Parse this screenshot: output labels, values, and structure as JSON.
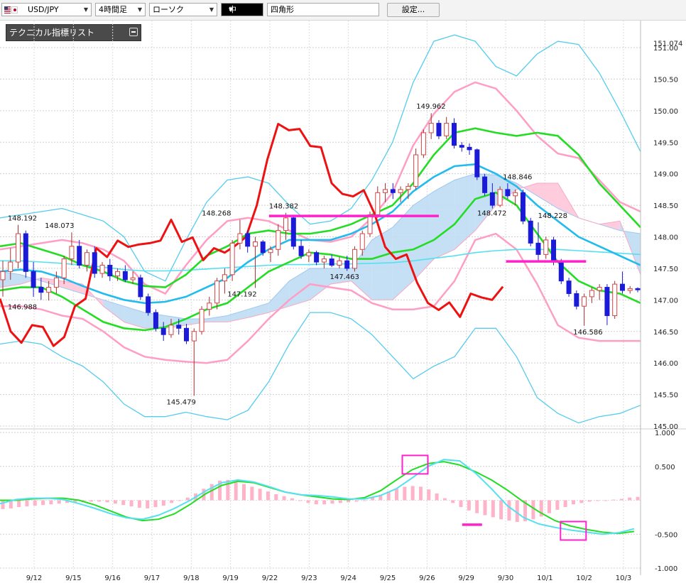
{
  "toolbar": {
    "symbol": "USD/JPY",
    "timeframe": "4時間足",
    "chart_style": "ローソク",
    "line_width": "中",
    "shape": "四角形",
    "settings_label": "設定..."
  },
  "indicator_panel": {
    "title": "テクニカル指標リスト"
  },
  "colors": {
    "bull": "#d44545",
    "bear": "#1a1ad8",
    "red_line": "#ee1111",
    "bb_inner": "#ff9ec4",
    "bb_outer": "#55ccee",
    "ma_green": "#22dd22",
    "ma_blue": "#22bbee",
    "ma_cyan": "#55e0f0",
    "cloud_blue": "#bfdcf4",
    "cloud_pink": "#ffc6da",
    "magenta": "#ff22cc",
    "hist": "#ffb3c8"
  },
  "chart_data": {
    "type": "line",
    "price_axis": {
      "ticks": [
        "151.00",
        "150.50",
        "150.00",
        "149.50",
        "149.00",
        "148.50",
        "148.00",
        "147.50",
        "147.00",
        "146.50",
        "146.00",
        "145.50",
        "145.00"
      ],
      "top_label": "151.074"
    },
    "macd_axis": {
      "ticks": [
        "1.000",
        "0.500",
        "-0.500",
        "-1.000"
      ]
    },
    "x_labels": [
      "9/12",
      "9/15",
      "9/16",
      "9/17",
      "9/18",
      "9/19",
      "9/22",
      "9/23",
      "9/24",
      "9/25",
      "9/26",
      "9/29",
      "9/30",
      "10/1",
      "10/2",
      "10/3"
    ],
    "price_labels": [
      "148.192",
      "148.073",
      "146.988",
      "145.479",
      "148.268",
      "147.192",
      "148.382",
      "147.463",
      "149.962",
      "148.846",
      "148.472",
      "148.228",
      "146.586"
    ],
    "candles": [
      [
        147.32,
        147.62,
        147.05,
        147.45
      ],
      [
        147.45,
        147.82,
        147.32,
        147.6
      ],
      [
        147.6,
        148.19,
        147.5,
        148.05
      ],
      [
        148.05,
        148.1,
        147.35,
        147.45
      ],
      [
        147.45,
        147.6,
        147.05,
        147.2
      ],
      [
        147.2,
        147.35,
        147.0,
        147.12
      ],
      [
        147.12,
        147.3,
        146.99,
        147.2
      ],
      [
        147.2,
        147.45,
        147.1,
        147.35
      ],
      [
        147.35,
        147.7,
        147.25,
        147.65
      ],
      [
        147.65,
        148.07,
        147.55,
        147.85
      ],
      [
        147.85,
        147.95,
        147.5,
        147.55
      ],
      [
        147.55,
        147.8,
        147.45,
        147.75
      ],
      [
        147.75,
        147.85,
        147.35,
        147.42
      ],
      [
        147.42,
        147.6,
        147.35,
        147.55
      ],
      [
        147.55,
        147.65,
        147.3,
        147.38
      ],
      [
        147.38,
        147.5,
        147.3,
        147.45
      ],
      [
        147.45,
        147.55,
        147.28,
        147.32
      ],
      [
        147.32,
        147.45,
        147.25,
        147.35
      ],
      [
        147.35,
        147.4,
        147.0,
        147.05
      ],
      [
        147.05,
        147.1,
        146.75,
        146.8
      ],
      [
        146.8,
        146.85,
        146.5,
        146.55
      ],
      [
        146.55,
        146.65,
        146.35,
        146.45
      ],
      [
        146.45,
        146.7,
        146.4,
        146.6
      ],
      [
        146.6,
        146.7,
        146.45,
        146.55
      ],
      [
        146.55,
        146.62,
        146.3,
        146.35
      ],
      [
        146.35,
        146.55,
        145.48,
        146.5
      ],
      [
        146.5,
        146.9,
        146.45,
        146.85
      ],
      [
        146.85,
        147.05,
        146.75,
        146.95
      ],
      [
        146.95,
        147.35,
        146.85,
        147.3
      ],
      [
        147.3,
        147.5,
        147.1,
        147.4
      ],
      [
        147.4,
        147.95,
        147.3,
        147.9
      ],
      [
        147.9,
        148.27,
        147.8,
        148.05
      ],
      [
        148.05,
        148.1,
        147.75,
        147.85
      ],
      [
        147.85,
        148.0,
        147.19,
        147.92
      ],
      [
        147.92,
        147.95,
        147.7,
        147.75
      ],
      [
        147.75,
        147.85,
        147.6,
        147.8
      ],
      [
        147.8,
        148.2,
        147.7,
        148.1
      ],
      [
        148.1,
        148.38,
        147.95,
        148.3
      ],
      [
        148.3,
        148.35,
        147.8,
        147.85
      ],
      [
        147.85,
        147.95,
        147.65,
        147.7
      ],
      [
        147.7,
        147.8,
        147.6,
        147.75
      ],
      [
        147.75,
        147.78,
        147.55,
        147.6
      ],
      [
        147.6,
        147.7,
        147.5,
        147.65
      ],
      [
        147.65,
        147.72,
        147.52,
        147.55
      ],
      [
        147.55,
        147.68,
        147.5,
        147.62
      ],
      [
        147.62,
        147.7,
        147.46,
        147.5
      ],
      [
        147.5,
        147.85,
        147.45,
        147.8
      ],
      [
        147.8,
        148.1,
        147.7,
        148.05
      ],
      [
        148.05,
        148.4,
        148.0,
        148.35
      ],
      [
        148.35,
        148.8,
        148.3,
        148.7
      ],
      [
        148.7,
        148.85,
        148.55,
        148.75
      ],
      [
        148.75,
        148.85,
        148.6,
        148.7
      ],
      [
        148.7,
        148.8,
        148.55,
        148.75
      ],
      [
        148.75,
        148.85,
        148.6,
        148.8
      ],
      [
        148.8,
        149.4,
        148.75,
        149.3
      ],
      [
        149.3,
        149.7,
        149.25,
        149.65
      ],
      [
        149.65,
        149.96,
        149.55,
        149.8
      ],
      [
        149.8,
        149.85,
        149.55,
        149.6
      ],
      [
        149.6,
        149.9,
        149.55,
        149.8
      ],
      [
        149.8,
        149.88,
        149.4,
        149.45
      ],
      [
        149.45,
        149.5,
        149.35,
        149.42
      ],
      [
        149.42,
        149.48,
        149.3,
        149.38
      ],
      [
        149.38,
        149.4,
        148.9,
        148.95
      ],
      [
        148.95,
        149.0,
        148.65,
        148.7
      ],
      [
        148.7,
        148.85,
        148.45,
        148.5
      ],
      [
        148.5,
        148.8,
        148.47,
        148.75
      ],
      [
        148.75,
        148.85,
        148.6,
        148.65
      ],
      [
        148.65,
        148.75,
        148.5,
        148.7
      ],
      [
        148.7,
        148.75,
        148.2,
        148.25
      ],
      [
        148.25,
        148.3,
        147.85,
        147.9
      ],
      [
        147.9,
        148.23,
        147.6,
        147.72
      ],
      [
        147.72,
        148.0,
        147.65,
        147.95
      ],
      [
        147.95,
        148.0,
        147.55,
        147.6
      ],
      [
        147.6,
        147.65,
        147.25,
        147.3
      ],
      [
        147.3,
        147.35,
        147.05,
        147.1
      ],
      [
        147.1,
        147.15,
        146.85,
        146.9
      ],
      [
        146.9,
        147.1,
        146.59,
        147.05
      ],
      [
        147.05,
        147.2,
        146.95,
        147.15
      ],
      [
        147.15,
        147.25,
        147.0,
        147.2
      ],
      [
        147.2,
        147.25,
        146.6,
        146.75
      ],
      [
        146.75,
        147.3,
        146.7,
        147.25
      ],
      [
        147.25,
        147.45,
        147.1,
        147.15
      ],
      [
        147.15,
        147.22,
        147.1,
        147.18
      ],
      [
        147.18,
        147.2,
        147.12,
        147.16
      ]
    ],
    "series": [
      {
        "values": [
          147.02,
          146.5,
          146.32,
          146.6,
          146.57,
          146.27,
          146.41,
          146.9,
          147.02,
          147.82,
          147.68,
          147.94,
          147.84,
          147.88,
          147.9,
          147.94,
          148.27,
          147.92,
          147.99,
          147.63,
          147.82,
          147.75,
          147.86,
          148.0,
          148.5,
          149.23,
          149.79,
          149.69,
          149.71,
          149.44,
          149.42,
          148.85,
          148.68,
          148.64,
          148.74,
          148.37,
          147.84,
          147.65,
          147.72,
          147.27,
          146.95,
          146.84,
          146.96,
          146.73,
          147.1,
          147.04,
          147.0,
          147.21
        ]
      }
    ],
    "bollinger": {
      "inner_upper": [
        147.8,
        147.85,
        147.9,
        147.95,
        147.9,
        147.8,
        147.62,
        147.25,
        147.1,
        147.55,
        147.95,
        148.25,
        148.3,
        148.25,
        148.1,
        147.95,
        147.92,
        148.0,
        148.3,
        148.7,
        149.45,
        149.95,
        150.3,
        150.45,
        150.35,
        150.0,
        149.6,
        149.32,
        149.25,
        148.9,
        148.55,
        148.4
      ],
      "inner_lower": [
        146.9,
        146.9,
        146.85,
        146.75,
        146.7,
        146.5,
        146.25,
        146.1,
        146.05,
        146.02,
        146.0,
        146.05,
        146.35,
        146.7,
        147.0,
        147.25,
        147.2,
        147.15,
        146.95,
        146.85,
        146.85,
        146.9,
        147.3,
        147.95,
        148.05,
        147.8,
        147.25,
        146.6,
        146.4,
        146.35,
        146.35,
        146.35
      ],
      "outer_upper": [
        148.3,
        148.35,
        148.4,
        148.45,
        148.35,
        148.25,
        148.0,
        147.45,
        147.3,
        147.95,
        148.55,
        148.9,
        148.95,
        148.85,
        148.5,
        148.2,
        148.25,
        148.45,
        148.9,
        149.5,
        150.45,
        151.1,
        151.2,
        151.1,
        150.7,
        150.55,
        150.9,
        151.1,
        151.05,
        150.6,
        150.0,
        149.35
      ],
      "outer_lower": [
        146.3,
        146.35,
        146.3,
        146.1,
        145.95,
        145.7,
        145.35,
        145.15,
        145.15,
        145.22,
        145.15,
        145.1,
        145.25,
        145.7,
        146.3,
        146.8,
        146.8,
        146.7,
        146.45,
        146.1,
        145.75,
        145.95,
        146.1,
        146.55,
        146.55,
        146.1,
        145.45,
        145.2,
        145.05,
        145.15,
        145.2,
        145.33
      ]
    },
    "green_upper": [
      147.85,
      147.9,
      147.8,
      147.7,
      147.55,
      147.45,
      147.3,
      147.22,
      147.2,
      147.4,
      147.7,
      147.85,
      148.05,
      148.1,
      148.05,
      148.05,
      148.1,
      148.2,
      148.35,
      148.5,
      148.85,
      149.3,
      149.65,
      149.72,
      149.65,
      149.6,
      149.65,
      149.6,
      149.3,
      148.85,
      148.5,
      148.15
    ],
    "green_lower": [
      147.15,
      147.2,
      147.2,
      147.05,
      146.85,
      146.65,
      146.55,
      146.52,
      146.57,
      146.7,
      146.85,
      146.95,
      147.2,
      147.45,
      147.6,
      147.75,
      147.72,
      147.65,
      147.65,
      147.75,
      147.8,
      147.95,
      148.2,
      148.6,
      148.7,
      148.5,
      148.05,
      147.6,
      147.3,
      147.15,
      147.1,
      146.95
    ],
    "ma_blue": [
      147.45,
      147.48,
      147.45,
      147.35,
      147.22,
      147.1,
      147.0,
      146.95,
      146.97,
      147.05,
      147.2,
      147.35,
      147.6,
      147.8,
      147.95,
      147.95,
      147.95,
      148.05,
      148.2,
      148.4,
      148.72,
      148.95,
      149.12,
      149.15,
      149.0,
      148.8,
      148.5,
      148.25,
      148.0,
      147.85,
      147.7,
      147.55
    ],
    "ma_cyan": [
      147.62,
      147.62,
      147.6,
      147.58,
      147.55,
      147.52,
      147.48,
      147.46,
      147.46,
      147.47,
      147.49,
      147.51,
      147.53,
      147.55,
      147.56,
      147.56,
      147.57,
      147.57,
      147.58,
      147.59,
      147.62,
      147.66,
      147.7,
      147.75,
      147.78,
      147.8,
      147.8,
      147.8,
      147.78,
      147.76,
      147.74,
      147.72
    ],
    "cloud_a": [
      147.45,
      147.4,
      147.3,
      147.2,
      147.1,
      147.0,
      146.9,
      146.8,
      146.75,
      146.7,
      146.7,
      146.75,
      146.85,
      146.95,
      147.3,
      147.5,
      147.5,
      147.5,
      147.95,
      148.15,
      148.5,
      148.72,
      148.9,
      149.0,
      148.98,
      148.85,
      148.65,
      148.45,
      148.3,
      148.2,
      148.1,
      148.05
    ],
    "cloud_b": [
      147.2,
      147.25,
      147.35,
      147.3,
      147.25,
      146.9,
      146.65,
      146.55,
      146.55,
      146.6,
      146.65,
      146.65,
      146.72,
      146.8,
      146.9,
      147.0,
      147.25,
      147.3,
      147.0,
      147.0,
      147.3,
      147.65,
      147.8,
      148.1,
      148.5,
      148.75,
      148.85,
      148.85,
      148.3,
      148.2,
      148.25,
      147.4
    ],
    "magenta_levels": [
      {
        "from_t": 0.42,
        "to_t": 0.685,
        "value": 148.33
      },
      {
        "from_t": 0.79,
        "to_t": 0.915,
        "value": 147.61
      }
    ],
    "macd": {
      "histogram": [
        -0.13,
        -0.12,
        -0.1,
        -0.09,
        -0.08,
        -0.07,
        -0.06,
        -0.05,
        -0.04,
        -0.03,
        -0.03,
        -0.02,
        -0.02,
        -0.03,
        -0.05,
        -0.07,
        -0.09,
        -0.11,
        -0.12,
        -0.1,
        -0.08,
        -0.04,
        0.0,
        0.04,
        0.1,
        0.17,
        0.24,
        0.29,
        0.3,
        0.28,
        0.24,
        0.2,
        0.17,
        0.13,
        0.09,
        0.06,
        0.03,
        -0.01,
        -0.04,
        -0.06,
        -0.06,
        -0.05,
        -0.04,
        -0.03,
        -0.02,
        0.0,
        0.04,
        0.08,
        0.13,
        0.17,
        0.2,
        0.21,
        0.2,
        0.16,
        0.1,
        0.03,
        -0.04,
        -0.1,
        -0.15,
        -0.19,
        -0.22,
        -0.25,
        -0.28,
        -0.3,
        -0.32,
        -0.31,
        -0.28,
        -0.24,
        -0.19,
        -0.14,
        -0.1,
        -0.06,
        -0.04,
        -0.02,
        -0.01,
        0.0,
        0.01,
        0.02,
        0.04,
        0.05
      ],
      "macd_line": [
        -0.05,
        0.01,
        0.03,
        0.03,
        0.01,
        -0.05,
        -0.12,
        -0.2,
        -0.26,
        -0.28,
        -0.22,
        -0.12,
        0.0,
        0.14,
        0.26,
        0.3,
        0.27,
        0.2,
        0.12,
        0.08,
        0.07,
        0.05,
        0.02,
        0.02,
        0.07,
        0.17,
        0.33,
        0.5,
        0.6,
        0.58,
        0.4,
        0.17,
        -0.08,
        -0.25,
        -0.35,
        -0.4,
        -0.44,
        -0.47,
        -0.5,
        -0.48,
        -0.42
      ],
      "signal_line": [
        0.0,
        0.0,
        0.02,
        0.03,
        0.03,
        0.0,
        -0.07,
        -0.16,
        -0.25,
        -0.3,
        -0.28,
        -0.2,
        -0.06,
        0.1,
        0.22,
        0.28,
        0.26,
        0.19,
        0.12,
        0.08,
        0.05,
        0.02,
        0.01,
        0.04,
        0.14,
        0.3,
        0.45,
        0.54,
        0.57,
        0.52,
        0.42,
        0.3,
        0.15,
        -0.02,
        -0.17,
        -0.3,
        -0.38,
        -0.43,
        -0.47,
        -0.49,
        -0.46
      ],
      "markers": [
        {
          "t": 0.648,
          "v": 0.525
        },
        {
          "t": 0.895,
          "v": -0.45
        }
      ],
      "dash": {
        "t": 0.737,
        "v": -0.36
      }
    }
  }
}
